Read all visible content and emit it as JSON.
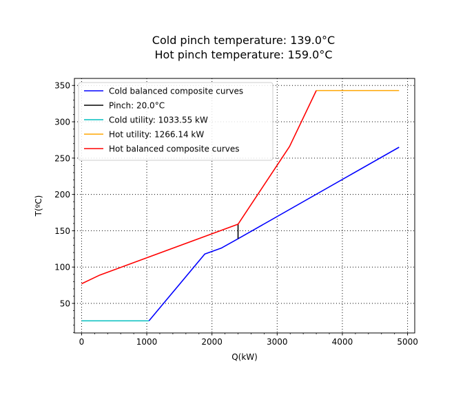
{
  "chart_data": {
    "type": "line",
    "title": [
      "Cold pinch temperature: 139.0°C",
      "Hot pinch temperature: 159.0°C"
    ],
    "xlabel": "Q(kW)",
    "ylabel": "T(ºC)",
    "xlim": [
      -110,
      5110
    ],
    "ylim": [
      9.3,
      359.7
    ],
    "xticks": [
      0,
      1000,
      2000,
      3000,
      4000,
      5000
    ],
    "yticks": [
      50,
      100,
      150,
      200,
      250,
      300,
      350
    ],
    "xminor_step": 200,
    "yminor_step": 10,
    "grid": true,
    "grid_style": "dotted",
    "legend_position": "upper-left",
    "series": [
      {
        "name": "Cold balanced composite curves",
        "color": "#0000ff",
        "x": [
          1033.55,
          1890,
          2140,
          2400,
          4870
        ],
        "y": [
          26,
          118,
          126,
          139,
          265
        ]
      },
      {
        "name": "Pinch: 20.0°C",
        "color": "#000000",
        "x": [
          2400,
          2400
        ],
        "y": [
          139,
          159
        ]
      },
      {
        "name": "Cold utility: 1033.55 kW",
        "color": "#00bfbf",
        "x": [
          0,
          1033.55
        ],
        "y": [
          26,
          26
        ]
      },
      {
        "name": "Hot utility: 1266.14 kW",
        "color": "#ffa500",
        "x": [
          3600,
          4870
        ],
        "y": [
          343,
          343
        ]
      },
      {
        "name": "Hot balanced composite curves",
        "color": "#ff0000",
        "x": [
          0,
          280,
          2400,
          3190,
          3600
        ],
        "y": [
          77,
          89,
          159,
          266,
          343
        ]
      }
    ]
  }
}
